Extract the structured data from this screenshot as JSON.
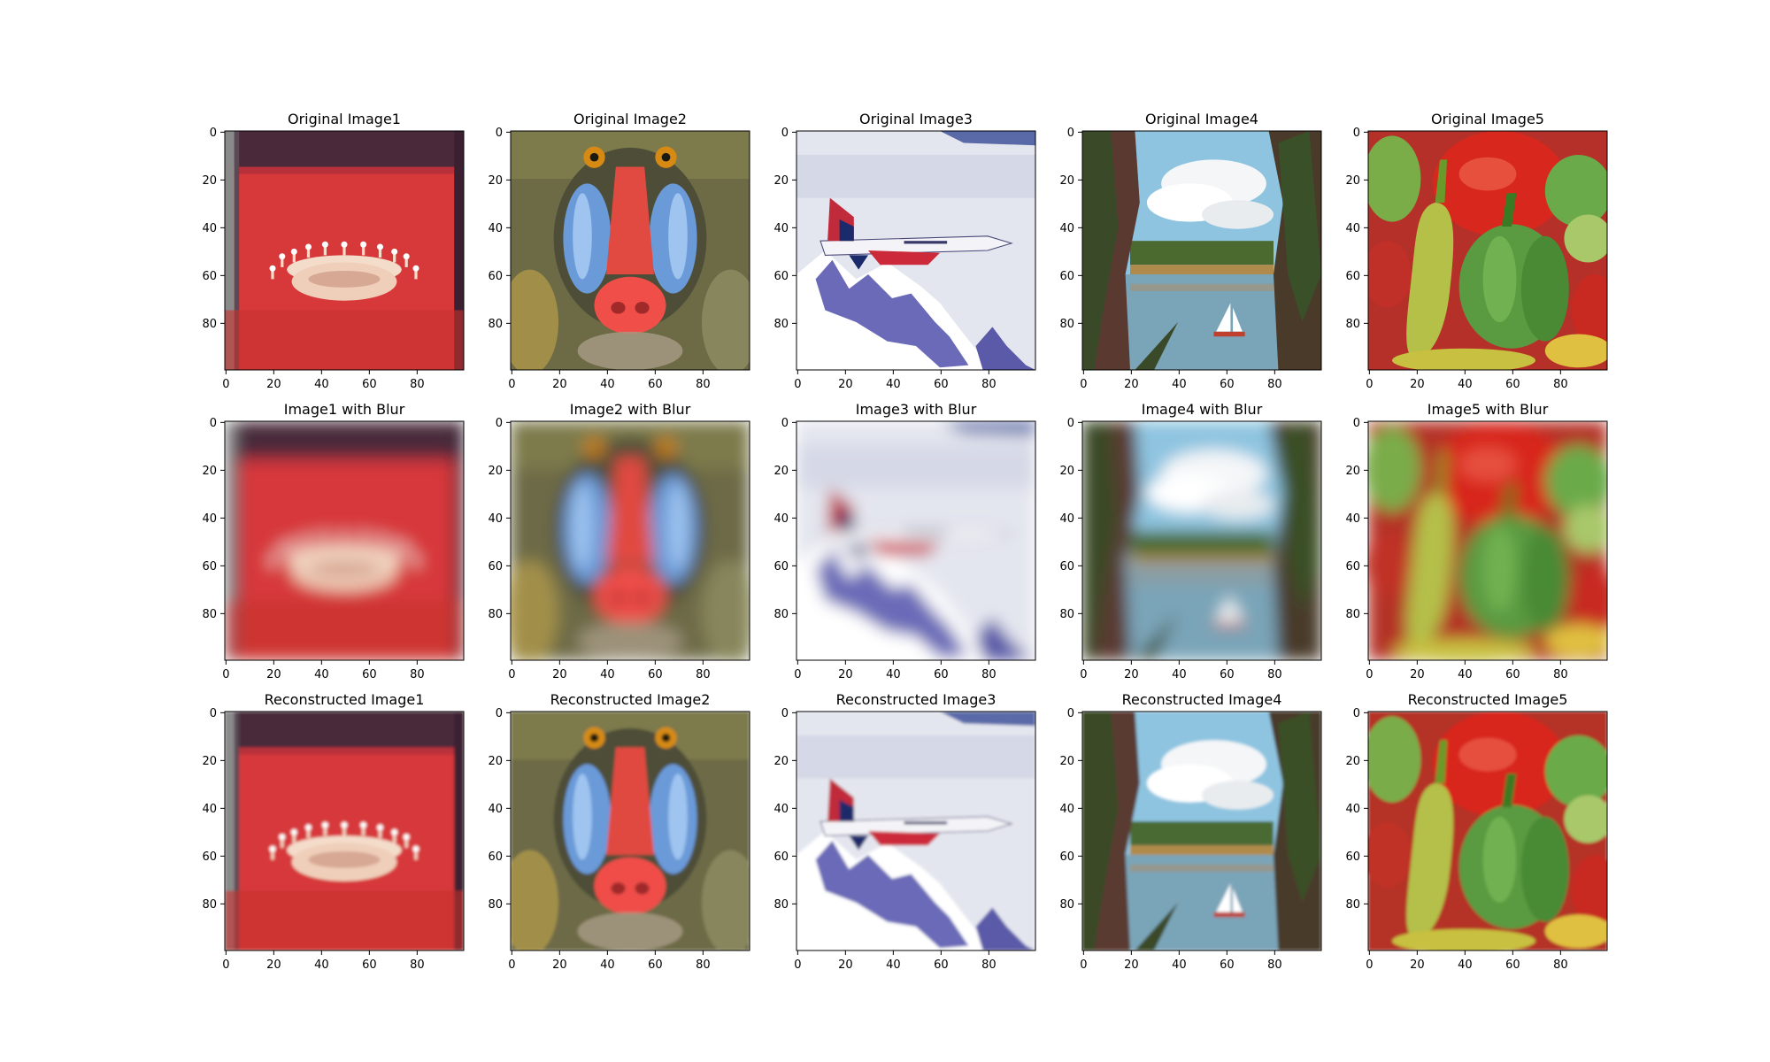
{
  "figure": {
    "rows": [
      {
        "row_label": "original",
        "panels": [
          {
            "title": "Original Image1",
            "scene": "milk-splash",
            "blur": 0
          },
          {
            "title": "Original Image2",
            "scene": "mandrill",
            "blur": 0
          },
          {
            "title": "Original Image3",
            "scene": "jet",
            "blur": 0
          },
          {
            "title": "Original Image4",
            "scene": "lake",
            "blur": 0
          },
          {
            "title": "Original Image5",
            "scene": "peppers",
            "blur": 0
          }
        ]
      },
      {
        "row_label": "blurred",
        "panels": [
          {
            "title": "Image1 with Blur",
            "scene": "milk-splash",
            "blur": 2.2
          },
          {
            "title": "Image2 with Blur",
            "scene": "mandrill",
            "blur": 2.2
          },
          {
            "title": "Image3 with Blur",
            "scene": "jet",
            "blur": 2.2
          },
          {
            "title": "Image4 with Blur",
            "scene": "lake",
            "blur": 2.2
          },
          {
            "title": "Image5 with Blur",
            "scene": "peppers",
            "blur": 2.2
          }
        ]
      },
      {
        "row_label": "reconstructed",
        "panels": [
          {
            "title": "Reconstructed Image1",
            "scene": "milk-splash",
            "blur": 0.4
          },
          {
            "title": "Reconstructed Image2",
            "scene": "mandrill",
            "blur": 0.4
          },
          {
            "title": "Reconstructed Image3",
            "scene": "jet",
            "blur": 0.4
          },
          {
            "title": "Reconstructed Image4",
            "scene": "lake",
            "blur": 0.4
          },
          {
            "title": "Reconstructed Image5",
            "scene": "peppers",
            "blur": 0.4
          }
        ]
      }
    ],
    "x_ticks": [
      "0",
      "20",
      "40",
      "60",
      "80"
    ],
    "y_ticks": [
      "0",
      "20",
      "40",
      "60",
      "80"
    ],
    "tick_values": [
      0,
      20,
      40,
      60,
      80
    ],
    "axis_range": [
      0,
      100
    ]
  }
}
